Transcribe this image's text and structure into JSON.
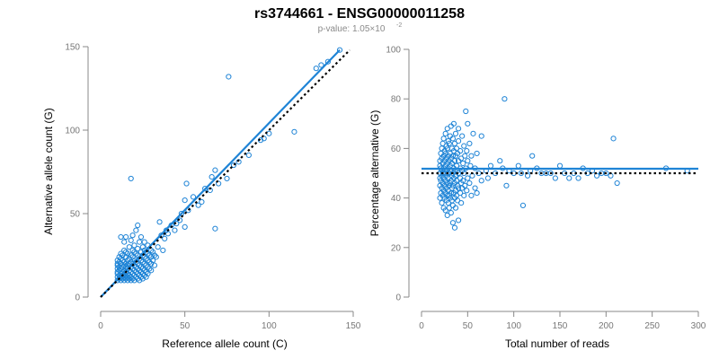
{
  "figure": {
    "title": "rs3744661 - ENSG00000011258",
    "pvalue_prefix": "p-value: 1.05",
    "pvalue_times": "×",
    "pvalue_base": "10",
    "pvalue_exponent": "-2",
    "colors": {
      "points": "#1f84d6",
      "fit": "#1f84d6",
      "reference": "#000000",
      "axis": "#888888"
    }
  },
  "chart_data": [
    {
      "type": "scatter",
      "title": "",
      "xlabel": "Reference allele count (C)",
      "ylabel": "Alternative allele count (G)",
      "xlim": [
        0,
        150
      ],
      "ylim": [
        0,
        150
      ],
      "xticks": [
        0,
        50,
        100,
        150
      ],
      "yticks": [
        0,
        50,
        100,
        150
      ],
      "points": [
        [
          10,
          10
        ],
        [
          10,
          12
        ],
        [
          10,
          14
        ],
        [
          10,
          15
        ],
        [
          10,
          17
        ],
        [
          10,
          19
        ],
        [
          10,
          20
        ],
        [
          10,
          22
        ],
        [
          11,
          11
        ],
        [
          11,
          13
        ],
        [
          11,
          16
        ],
        [
          11,
          18
        ],
        [
          11,
          21
        ],
        [
          11,
          24
        ],
        [
          12,
          10
        ],
        [
          12,
          12
        ],
        [
          12,
          14
        ],
        [
          12,
          17
        ],
        [
          12,
          20
        ],
        [
          12,
          23
        ],
        [
          12,
          26
        ],
        [
          12,
          36
        ],
        [
          13,
          11
        ],
        [
          13,
          13
        ],
        [
          13,
          15
        ],
        [
          13,
          18
        ],
        [
          13,
          22
        ],
        [
          13,
          25
        ],
        [
          14,
          10
        ],
        [
          14,
          12
        ],
        [
          14,
          14
        ],
        [
          14,
          16
        ],
        [
          14,
          19
        ],
        [
          14,
          21
        ],
        [
          14,
          28
        ],
        [
          14,
          33
        ],
        [
          15,
          11
        ],
        [
          15,
          13
        ],
        [
          15,
          15
        ],
        [
          15,
          18
        ],
        [
          15,
          20
        ],
        [
          15,
          24
        ],
        [
          15,
          27
        ],
        [
          15,
          36
        ],
        [
          16,
          10
        ],
        [
          16,
          12
        ],
        [
          16,
          14
        ],
        [
          16,
          17
        ],
        [
          16,
          19
        ],
        [
          16,
          22
        ],
        [
          16,
          26
        ],
        [
          17,
          11
        ],
        [
          17,
          13
        ],
        [
          17,
          16
        ],
        [
          17,
          20
        ],
        [
          17,
          23
        ],
        [
          17,
          30
        ],
        [
          18,
          10
        ],
        [
          18,
          12
        ],
        [
          18,
          15
        ],
        [
          18,
          18
        ],
        [
          18,
          21
        ],
        [
          18,
          25
        ],
        [
          18,
          34
        ],
        [
          18,
          71
        ],
        [
          19,
          11
        ],
        [
          19,
          14
        ],
        [
          19,
          17
        ],
        [
          19,
          20
        ],
        [
          19,
          24
        ],
        [
          19,
          28
        ],
        [
          19,
          37
        ],
        [
          20,
          10
        ],
        [
          20,
          13
        ],
        [
          20,
          16
        ],
        [
          20,
          19
        ],
        [
          20,
          22
        ],
        [
          20,
          27
        ],
        [
          20,
          31
        ],
        [
          21,
          12
        ],
        [
          21,
          15
        ],
        [
          21,
          18
        ],
        [
          21,
          21
        ],
        [
          21,
          26
        ],
        [
          21,
          40
        ],
        [
          22,
          11
        ],
        [
          22,
          14
        ],
        [
          22,
          17
        ],
        [
          22,
          20
        ],
        [
          22,
          25
        ],
        [
          22,
          29
        ],
        [
          22,
          43
        ],
        [
          23,
          10
        ],
        [
          23,
          13
        ],
        [
          23,
          16
        ],
        [
          23,
          19
        ],
        [
          23,
          23
        ],
        [
          23,
          33
        ],
        [
          24,
          12
        ],
        [
          24,
          15
        ],
        [
          24,
          18
        ],
        [
          24,
          22
        ],
        [
          24,
          27
        ],
        [
          24,
          36
        ],
        [
          25,
          11
        ],
        [
          25,
          14
        ],
        [
          25,
          17
        ],
        [
          25,
          21
        ],
        [
          25,
          25
        ],
        [
          25,
          30
        ],
        [
          26,
          13
        ],
        [
          26,
          16
        ],
        [
          26,
          20
        ],
        [
          26,
          24
        ],
        [
          26,
          28
        ],
        [
          26,
          33
        ],
        [
          27,
          12
        ],
        [
          27,
          15
        ],
        [
          27,
          19
        ],
        [
          27,
          23
        ],
        [
          27,
          27
        ],
        [
          28,
          14
        ],
        [
          28,
          18
        ],
        [
          28,
          22
        ],
        [
          28,
          26
        ],
        [
          28,
          31
        ],
        [
          29,
          17
        ],
        [
          29,
          21
        ],
        [
          29,
          25
        ],
        [
          30,
          16
        ],
        [
          30,
          20
        ],
        [
          30,
          24
        ],
        [
          30,
          28
        ],
        [
          31,
          22
        ],
        [
          31,
          27
        ],
        [
          32,
          19
        ],
        [
          32,
          25
        ],
        [
          33,
          24
        ],
        [
          34,
          30
        ],
        [
          35,
          45
        ],
        [
          36,
          37
        ],
        [
          37,
          28
        ],
        [
          38,
          35
        ],
        [
          39,
          40
        ],
        [
          40,
          38
        ],
        [
          42,
          43
        ],
        [
          44,
          40
        ],
        [
          45,
          44
        ],
        [
          47,
          46
        ],
        [
          48,
          50
        ],
        [
          50,
          42
        ],
        [
          50,
          58
        ],
        [
          51,
          68
        ],
        [
          52,
          52
        ],
        [
          55,
          60
        ],
        [
          58,
          55
        ],
        [
          60,
          57
        ],
        [
          62,
          65
        ],
        [
          65,
          64
        ],
        [
          66,
          72
        ],
        [
          68,
          41
        ],
        [
          68,
          76
        ],
        [
          70,
          68
        ],
        [
          75,
          71
        ],
        [
          76,
          132
        ],
        [
          79,
          79
        ],
        [
          82,
          81
        ],
        [
          88,
          85
        ],
        [
          95,
          94
        ],
        [
          97,
          95
        ],
        [
          100,
          98
        ],
        [
          115,
          99
        ],
        [
          128,
          137
        ],
        [
          131,
          139
        ],
        [
          135,
          141
        ],
        [
          142,
          148
        ]
      ],
      "fit_line": {
        "x": [
          0,
          142
        ],
        "y": [
          0,
          148
        ]
      },
      "reference_line": {
        "x": [
          0,
          148
        ],
        "y": [
          0,
          148
        ]
      }
    },
    {
      "type": "scatter",
      "title": "",
      "xlabel": "Total number of reads",
      "ylabel": "Percentage alternative (G)",
      "xlim": [
        0,
        300
      ],
      "ylim": [
        0,
        100
      ],
      "xticks": [
        0,
        50,
        100,
        150,
        200,
        250,
        300
      ],
      "yticks": [
        0,
        20,
        40,
        60,
        80,
        100
      ],
      "points": [
        [
          20,
          40
        ],
        [
          20,
          45
        ],
        [
          20,
          48
        ],
        [
          20,
          50
        ],
        [
          20,
          53
        ],
        [
          20,
          55
        ],
        [
          21,
          42
        ],
        [
          21,
          47
        ],
        [
          21,
          52
        ],
        [
          21,
          58
        ],
        [
          22,
          38
        ],
        [
          22,
          44
        ],
        [
          22,
          49
        ],
        [
          22,
          51
        ],
        [
          22,
          56
        ],
        [
          22,
          60
        ],
        [
          23,
          41
        ],
        [
          23,
          46
        ],
        [
          23,
          50
        ],
        [
          23,
          54
        ],
        [
          23,
          62
        ],
        [
          24,
          36
        ],
        [
          24,
          43
        ],
        [
          24,
          48
        ],
        [
          24,
          52
        ],
        [
          24,
          57
        ],
        [
          24,
          64
        ],
        [
          25,
          40
        ],
        [
          25,
          45
        ],
        [
          25,
          50
        ],
        [
          25,
          55
        ],
        [
          25,
          59
        ],
        [
          26,
          35
        ],
        [
          26,
          42
        ],
        [
          26,
          47
        ],
        [
          26,
          53
        ],
        [
          26,
          58
        ],
        [
          26,
          66
        ],
        [
          27,
          39
        ],
        [
          27,
          44
        ],
        [
          27,
          49
        ],
        [
          27,
          51
        ],
        [
          27,
          56
        ],
        [
          27,
          61
        ],
        [
          28,
          33
        ],
        [
          28,
          41
        ],
        [
          28,
          46
        ],
        [
          28,
          50
        ],
        [
          28,
          54
        ],
        [
          28,
          60
        ],
        [
          28,
          68
        ],
        [
          29,
          38
        ],
        [
          29,
          43
        ],
        [
          29,
          48
        ],
        [
          29,
          52
        ],
        [
          29,
          57
        ],
        [
          29,
          63
        ],
        [
          30,
          36
        ],
        [
          30,
          41
        ],
        [
          30,
          45
        ],
        [
          30,
          50
        ],
        [
          30,
          55
        ],
        [
          30,
          62
        ],
        [
          31,
          40
        ],
        [
          31,
          46
        ],
        [
          31,
          53
        ],
        [
          31,
          58
        ],
        [
          31,
          65
        ],
        [
          32,
          34
        ],
        [
          32,
          42
        ],
        [
          32,
          47
        ],
        [
          32,
          51
        ],
        [
          32,
          56
        ],
        [
          32,
          69
        ],
        [
          33,
          39
        ],
        [
          33,
          44
        ],
        [
          33,
          49
        ],
        [
          33,
          54
        ],
        [
          33,
          60
        ],
        [
          34,
          30
        ],
        [
          34,
          37
        ],
        [
          34,
          45
        ],
        [
          34,
          50
        ],
        [
          34,
          57
        ],
        [
          34,
          64
        ],
        [
          35,
          42
        ],
        [
          35,
          48
        ],
        [
          35,
          52
        ],
        [
          35,
          59
        ],
        [
          35,
          70
        ],
        [
          36,
          28
        ],
        [
          36,
          40
        ],
        [
          36,
          46
        ],
        [
          36,
          51
        ],
        [
          36,
          55
        ],
        [
          36,
          62
        ],
        [
          37,
          36
        ],
        [
          37,
          43
        ],
        [
          37,
          49
        ],
        [
          37,
          57
        ],
        [
          37,
          66
        ],
        [
          38,
          41
        ],
        [
          38,
          47
        ],
        [
          38,
          53
        ],
        [
          38,
          60
        ],
        [
          39,
          39
        ],
        [
          39,
          45
        ],
        [
          39,
          51
        ],
        [
          39,
          58
        ],
        [
          40,
          31
        ],
        [
          40,
          44
        ],
        [
          40,
          50
        ],
        [
          40,
          55
        ],
        [
          40,
          63
        ],
        [
          40,
          68
        ],
        [
          42,
          42
        ],
        [
          42,
          48
        ],
        [
          42,
          52
        ],
        [
          42,
          59
        ],
        [
          43,
          38
        ],
        [
          43,
          46
        ],
        [
          43,
          56
        ],
        [
          44,
          44
        ],
        [
          44,
          51
        ],
        [
          44,
          65
        ],
        [
          45,
          47
        ],
        [
          45,
          54
        ],
        [
          46,
          41
        ],
        [
          46,
          50
        ],
        [
          46,
          61
        ],
        [
          47,
          45
        ],
        [
          47,
          57
        ],
        [
          48,
          52
        ],
        [
          48,
          75
        ],
        [
          49,
          43
        ],
        [
          49,
          59
        ],
        [
          50,
          48
        ],
        [
          50,
          55
        ],
        [
          50,
          70
        ],
        [
          52,
          46
        ],
        [
          52,
          62
        ],
        [
          53,
          53
        ],
        [
          54,
          41
        ],
        [
          54,
          57
        ],
        [
          55,
          49
        ],
        [
          56,
          66
        ],
        [
          58,
          44
        ],
        [
          58,
          52
        ],
        [
          60,
          42
        ],
        [
          60,
          58
        ],
        [
          62,
          50
        ],
        [
          65,
          47
        ],
        [
          65,
          65
        ],
        [
          70,
          51
        ],
        [
          72,
          48
        ],
        [
          75,
          53
        ],
        [
          80,
          50
        ],
        [
          85,
          55
        ],
        [
          88,
          52
        ],
        [
          90,
          80
        ],
        [
          92,
          45
        ],
        [
          95,
          51
        ],
        [
          100,
          50
        ],
        [
          105,
          53
        ],
        [
          108,
          50
        ],
        [
          110,
          37
        ],
        [
          115,
          49
        ],
        [
          118,
          51
        ],
        [
          120,
          57
        ],
        [
          125,
          52
        ],
        [
          130,
          50
        ],
        [
          135,
          50
        ],
        [
          140,
          50
        ],
        [
          145,
          48
        ],
        [
          150,
          53
        ],
        [
          155,
          50
        ],
        [
          160,
          48
        ],
        [
          165,
          50
        ],
        [
          170,
          48
        ],
        [
          175,
          52
        ],
        [
          180,
          50
        ],
        [
          185,
          51
        ],
        [
          190,
          49
        ],
        [
          195,
          50
        ],
        [
          200,
          50
        ],
        [
          205,
          49
        ],
        [
          208,
          64
        ],
        [
          212,
          46
        ],
        [
          265,
          52
        ],
        [
          288,
          51
        ]
      ],
      "fit_line": {
        "x": [
          0,
          300
        ],
        "y": [
          51.8,
          51.8
        ]
      },
      "reference_line": {
        "x": [
          0,
          300
        ],
        "y": [
          50,
          50
        ]
      }
    }
  ]
}
